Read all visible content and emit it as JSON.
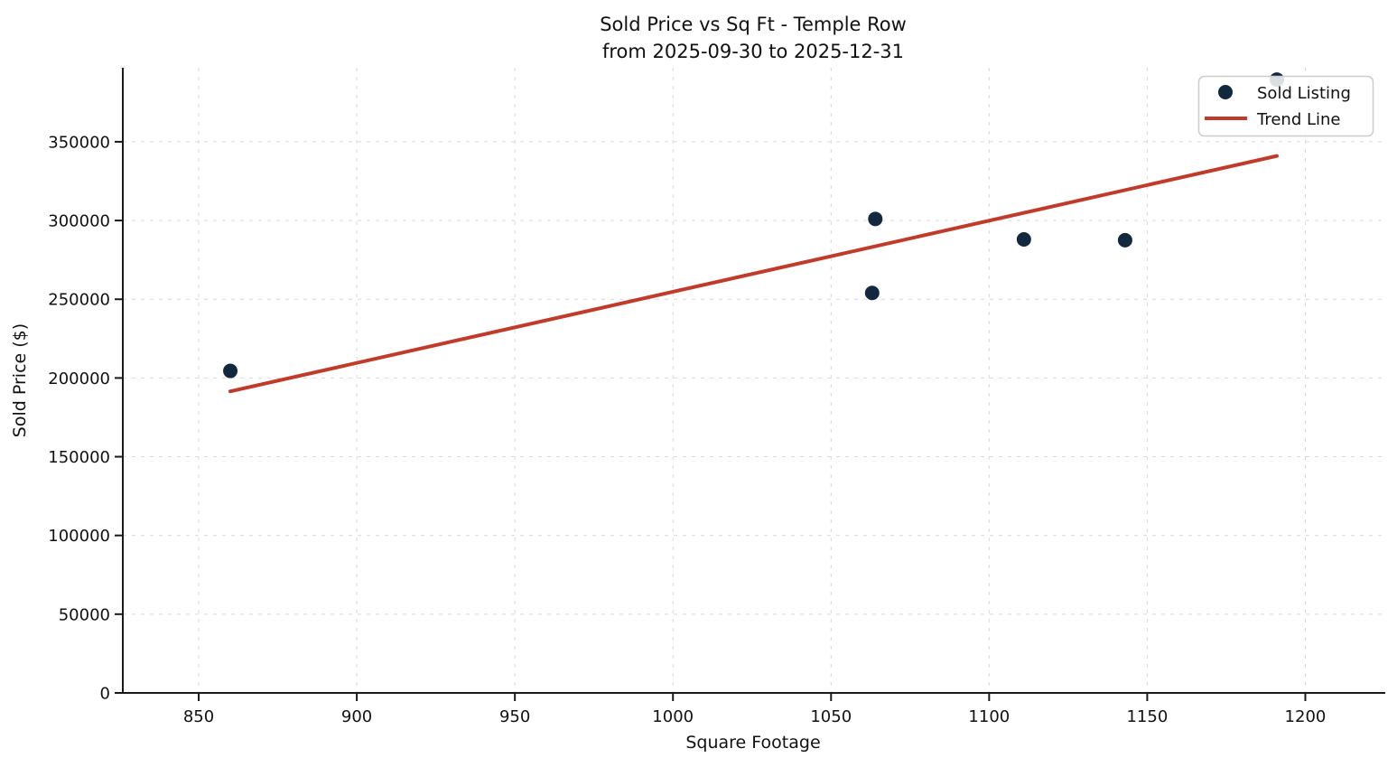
{
  "chart_data": {
    "type": "scatter",
    "title_lines": [
      "Sold Price vs Sq Ft - Temple Row",
      "from 2025-09-30 to 2025-12-31"
    ],
    "xlabel": "Square Footage",
    "ylabel": "Sold Price ($)",
    "xlim": [
      826,
      1225
    ],
    "ylim": [
      0,
      397000
    ],
    "x_ticks": [
      850,
      900,
      950,
      1000,
      1050,
      1100,
      1150,
      1200
    ],
    "y_ticks": [
      0,
      50000,
      100000,
      150000,
      200000,
      250000,
      300000,
      350000
    ],
    "grid": {
      "visible": true,
      "style": "dashed",
      "color": "#d9d9d9"
    },
    "legend": {
      "position": "upper right"
    },
    "series": [
      {
        "name": "Sold Listing",
        "type": "scatter",
        "marker": "circle",
        "color": "#12283e",
        "points": [
          [
            860,
            204500
          ],
          [
            1063,
            254000
          ],
          [
            1064,
            301000
          ],
          [
            1111,
            288000
          ],
          [
            1143,
            287500
          ],
          [
            1191,
            389500
          ]
        ]
      },
      {
        "name": "Trend Line",
        "type": "line",
        "color": "#c13b2b",
        "points": [
          [
            860,
            191500
          ],
          [
            1191,
            341000
          ]
        ]
      }
    ],
    "colors": {
      "point": "#12283e",
      "trend": "#c13b2b",
      "grid": "#d9d9d9",
      "spine": "#1a1a1a"
    }
  }
}
